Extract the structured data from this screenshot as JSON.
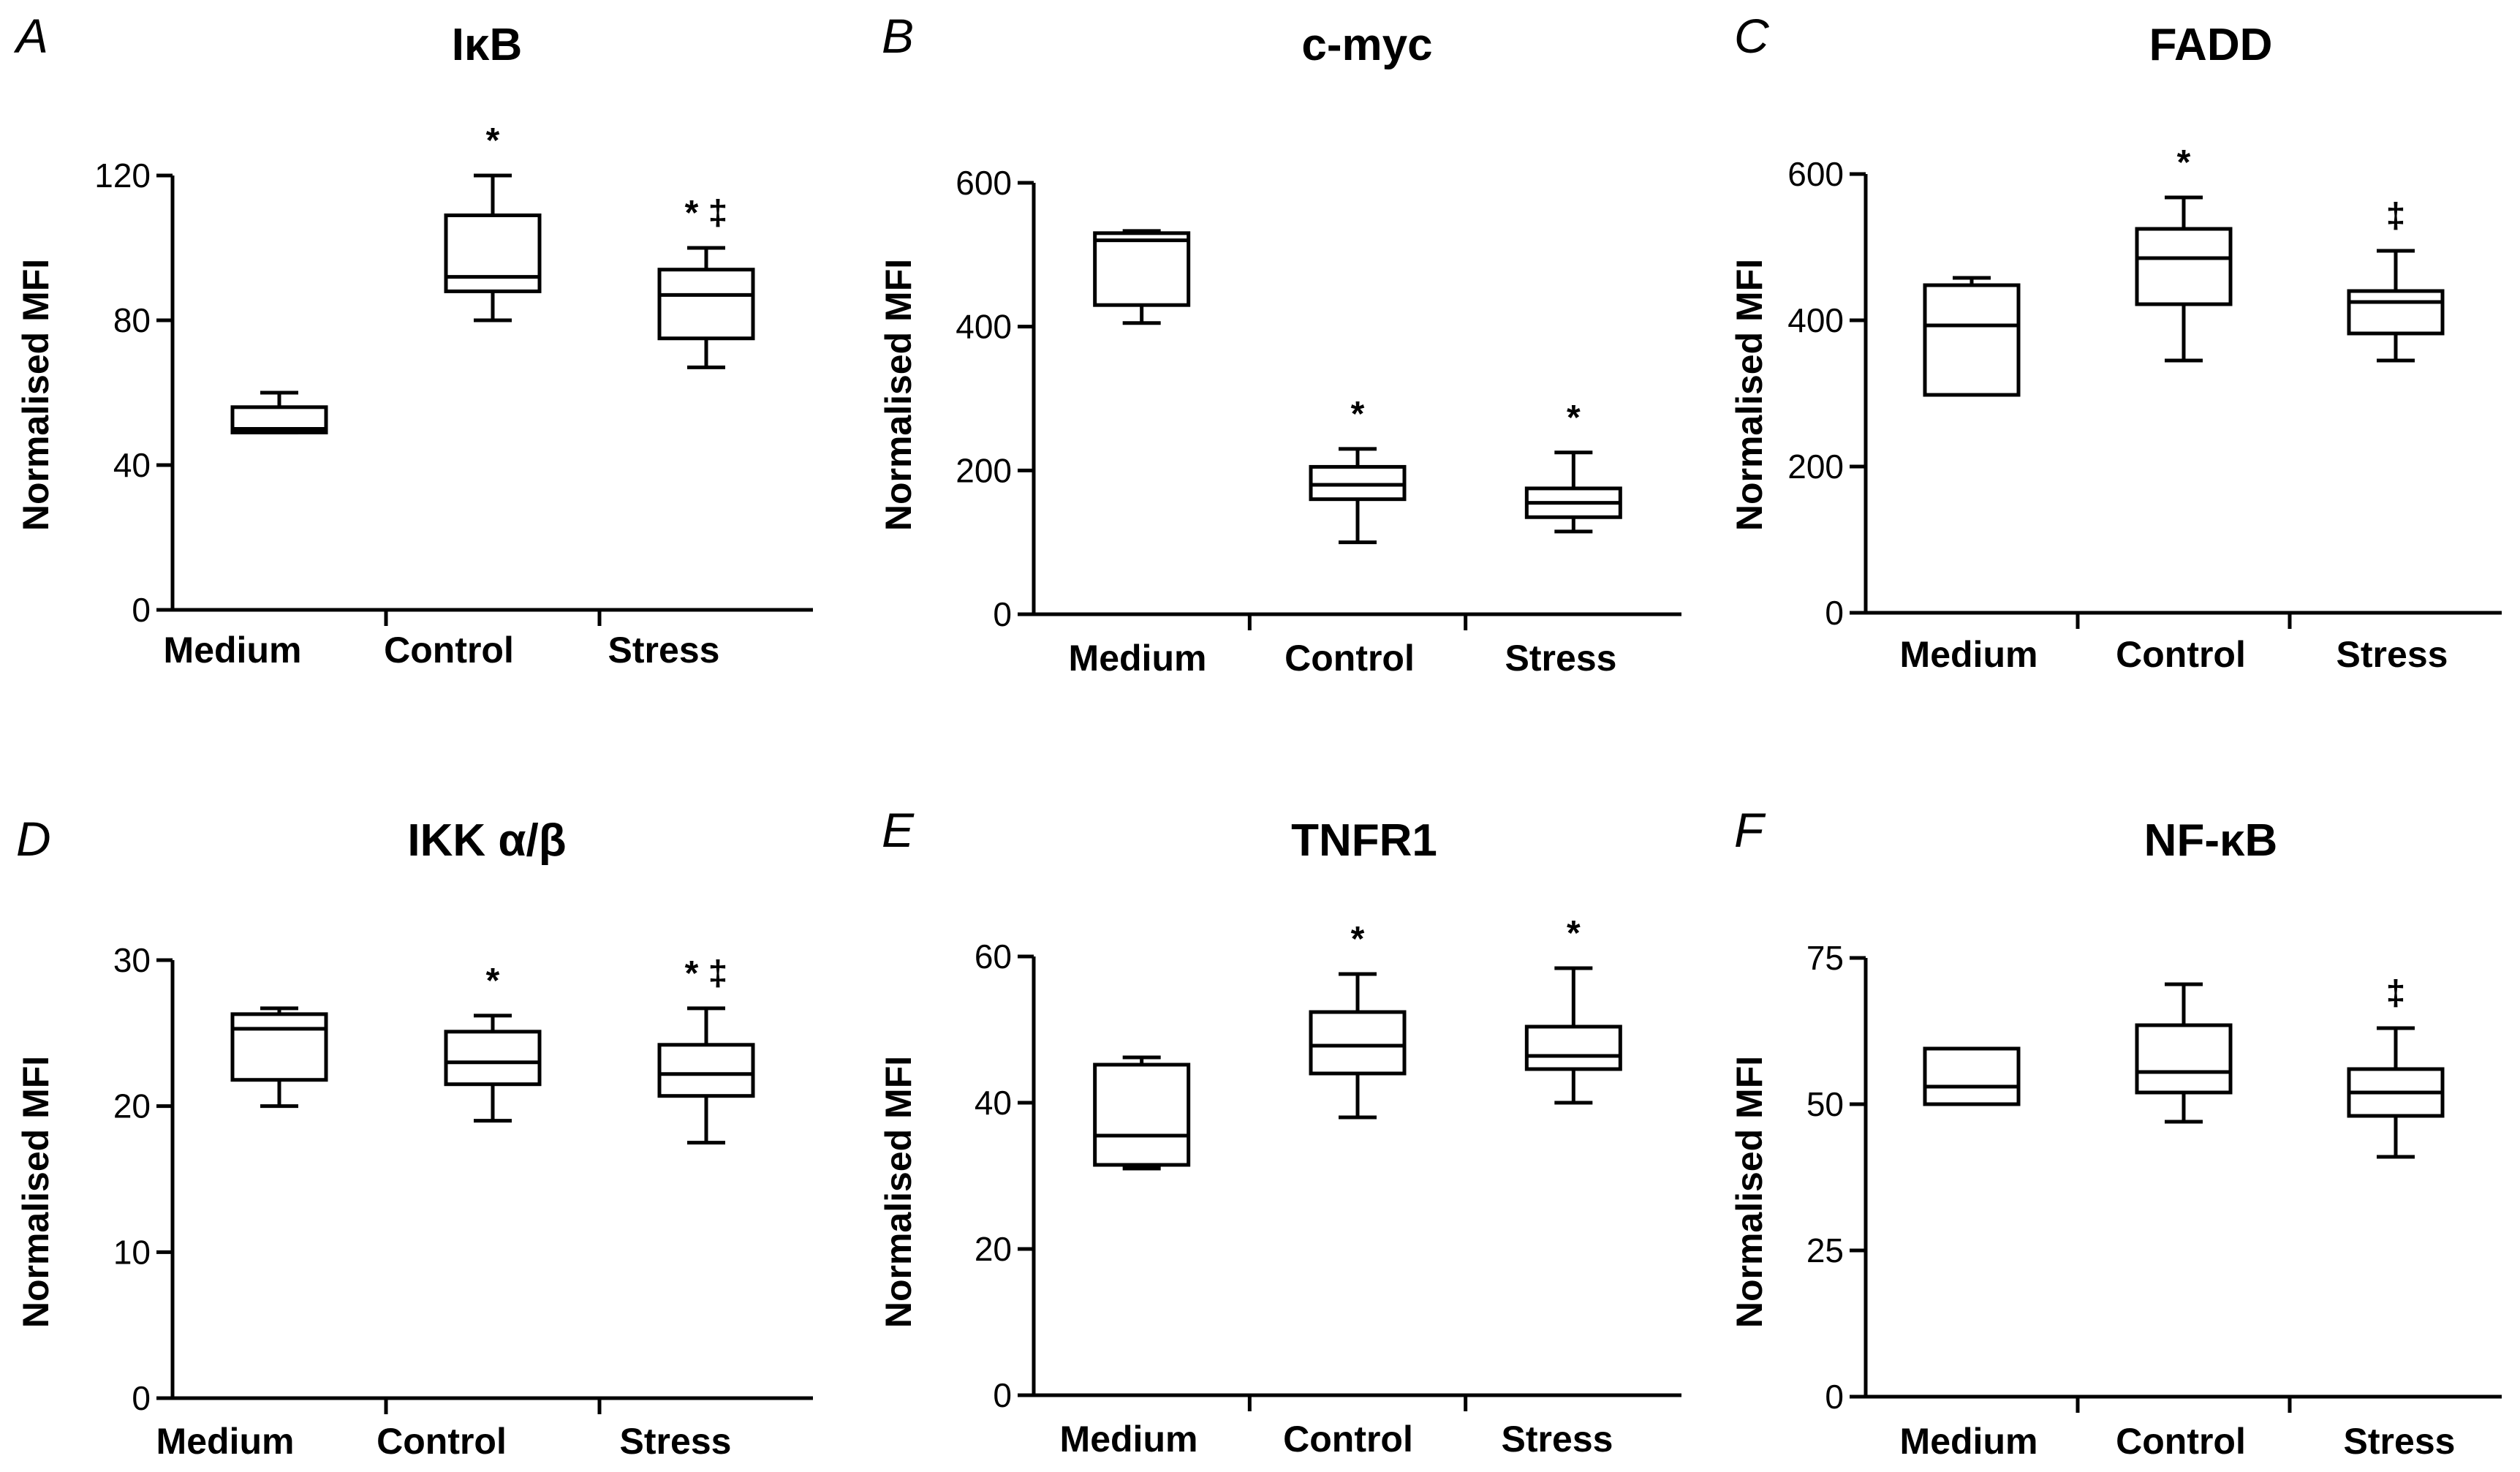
{
  "figure": {
    "colors": {
      "line": "#000000",
      "background": "#ffffff"
    }
  },
  "chart_data": [
    {
      "panel": "A",
      "title": "IκB",
      "type": "boxplot",
      "ylabel": "Normalised MFI",
      "ylim": [
        0,
        120
      ],
      "yticks": [
        "0",
        "40",
        "80",
        "120"
      ],
      "categories": [
        "Medium",
        "Control",
        "Stress"
      ],
      "boxes": [
        {
          "min": 49,
          "q1": 49,
          "median": 50,
          "q3": 56,
          "max": 60,
          "sig": ""
        },
        {
          "min": 80,
          "q1": 88,
          "median": 92,
          "q3": 109,
          "max": 120,
          "sig": "*"
        },
        {
          "min": 67,
          "q1": 75,
          "median": 87,
          "q3": 94,
          "max": 100,
          "sig": "* ‡"
        }
      ]
    },
    {
      "panel": "B",
      "title": "c-myc",
      "type": "boxplot",
      "ylabel": "Normalised MFI",
      "ylim": [
        0,
        600
      ],
      "yticks": [
        "0",
        "200",
        "400",
        "600"
      ],
      "categories": [
        "Medium",
        "Control",
        "Stress"
      ],
      "boxes": [
        {
          "min": 405,
          "q1": 430,
          "median": 520,
          "q3": 530,
          "max": 533,
          "sig": ""
        },
        {
          "min": 100,
          "q1": 160,
          "median": 180,
          "q3": 205,
          "max": 230,
          "sig": "*"
        },
        {
          "min": 115,
          "q1": 135,
          "median": 155,
          "q3": 175,
          "max": 225,
          "sig": "*"
        }
      ]
    },
    {
      "panel": "C",
      "title": "FADD",
      "type": "boxplot",
      "ylabel": "Normalised MFI",
      "ylim": [
        0,
        600
      ],
      "yticks": [
        "0",
        "200",
        "400",
        "600"
      ],
      "categories": [
        "Medium",
        "Control",
        "Stress"
      ],
      "boxes": [
        {
          "min": 298,
          "q1": 298,
          "median": 393,
          "q3": 448,
          "max": 458,
          "sig": ""
        },
        {
          "min": 345,
          "q1": 422,
          "median": 485,
          "q3": 525,
          "max": 568,
          "sig": "*"
        },
        {
          "min": 345,
          "q1": 382,
          "median": 425,
          "q3": 440,
          "max": 495,
          "sig": "‡"
        }
      ]
    },
    {
      "panel": "D",
      "title": "IKK α/β",
      "type": "boxplot",
      "ylabel": "Normalised MFI",
      "ylim": [
        0,
        30
      ],
      "yticks": [
        "0",
        "10",
        "20",
        "30"
      ],
      "categories": [
        "Medium",
        "Control",
        "Stress"
      ],
      "boxes": [
        {
          "min": 20,
          "q1": 21.8,
          "median": 25.3,
          "q3": 26.3,
          "max": 26.7,
          "sig": ""
        },
        {
          "min": 19,
          "q1": 21.5,
          "median": 23,
          "q3": 25.1,
          "max": 26.2,
          "sig": "*"
        },
        {
          "min": 17.5,
          "q1": 20.7,
          "median": 22.2,
          "q3": 24.2,
          "max": 26.7,
          "sig": "* ‡"
        }
      ]
    },
    {
      "panel": "E",
      "title": "TNFR1",
      "type": "boxplot",
      "ylabel": "Normalised MFI",
      "ylim": [
        0,
        60
      ],
      "yticks": [
        "0",
        "20",
        "40",
        "60"
      ],
      "categories": [
        "Medium",
        "Control",
        "Stress"
      ],
      "boxes": [
        {
          "min": 31,
          "q1": 31.5,
          "median": 35.5,
          "q3": 45.2,
          "max": 46.2,
          "sig": ""
        },
        {
          "min": 38,
          "q1": 44,
          "median": 47.8,
          "q3": 52.4,
          "max": 57.6,
          "sig": "*"
        },
        {
          "min": 40,
          "q1": 44.6,
          "median": 46.4,
          "q3": 50.4,
          "max": 58.4,
          "sig": "*"
        }
      ]
    },
    {
      "panel": "F",
      "title": "NF-κB",
      "type": "boxplot",
      "ylabel": "Normalised MFI",
      "ylim": [
        0,
        75
      ],
      "yticks": [
        "0",
        "25",
        "50",
        "75"
      ],
      "categories": [
        "Medium",
        "Control",
        "Stress"
      ],
      "boxes": [
        {
          "min": 50,
          "q1": 50,
          "median": 53,
          "q3": 59.5,
          "max": 59.5,
          "sig": ""
        },
        {
          "min": 47,
          "q1": 52,
          "median": 55.5,
          "q3": 63.5,
          "max": 70.5,
          "sig": ""
        },
        {
          "min": 41,
          "q1": 48,
          "median": 52,
          "q3": 56,
          "max": 63,
          "sig": "‡"
        }
      ]
    }
  ]
}
